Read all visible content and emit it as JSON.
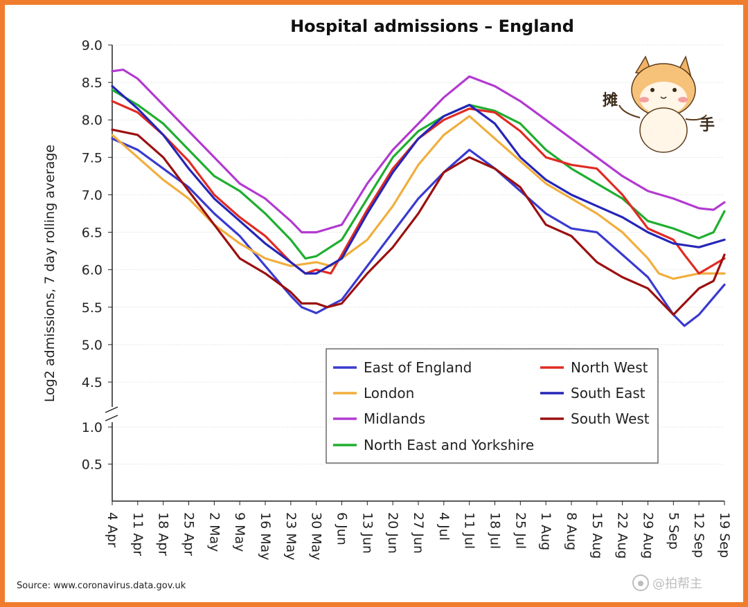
{
  "chart_data": {
    "type": "line",
    "title": "Hospital admissions – England",
    "xlabel": "",
    "ylabel": "Log2 admissions, 7 day rolling average",
    "yticks_upper": [
      "4.5",
      "5.0",
      "5.5",
      "6.0",
      "6.5",
      "7.0",
      "7.5",
      "8.0",
      "8.5",
      "9.0"
    ],
    "yticks_lower": [
      "0.5",
      "1.0"
    ],
    "ylim_upper": [
      4.3,
      9.0
    ],
    "ylim_lower": [
      0.0,
      1.0
    ],
    "y_axis_break": true,
    "x_labels": [
      "4 Apr",
      "11 Apr",
      "18 Apr",
      "25 Apr",
      "2 May",
      "9 May",
      "16 May",
      "23 May",
      "30 May",
      "6 Jun",
      "13 Jun",
      "20 Jun",
      "27 Jun",
      "4 Jul",
      "11 Jul",
      "18 Jul",
      "25 Jul",
      "1 Aug",
      "8 Aug",
      "15 Aug",
      "22 Aug",
      "29 Aug",
      "5 Sep",
      "12 Sep",
      "19 Sep"
    ],
    "x_days": [
      0,
      7,
      14,
      21,
      28,
      35,
      42,
      49,
      56,
      63,
      70,
      77,
      84,
      91,
      98,
      105,
      112,
      119,
      126,
      133,
      140,
      147,
      154,
      161,
      168
    ],
    "grid": "horizontal",
    "legend_position": "bottom-right",
    "series": [
      {
        "name": "East of England",
        "color": "#3a3ad0",
        "x": [
          0,
          7,
          14,
          21,
          28,
          35,
          42,
          49,
          52,
          56,
          59,
          63,
          70,
          77,
          84,
          91,
          98,
          105,
          112,
          119,
          126,
          133,
          140,
          147,
          154,
          157,
          161,
          168
        ],
        "values": [
          7.75,
          7.6,
          7.35,
          7.1,
          6.75,
          6.45,
          6.05,
          5.65,
          5.5,
          5.42,
          5.5,
          5.6,
          6.05,
          6.5,
          6.95,
          7.3,
          7.6,
          7.35,
          7.05,
          6.75,
          6.55,
          6.5,
          6.2,
          5.9,
          5.4,
          5.25,
          5.4,
          5.8
        ]
      },
      {
        "name": "London",
        "color": "#f1ae3c",
        "x": [
          0,
          7,
          14,
          21,
          28,
          35,
          42,
          49,
          56,
          60,
          63,
          70,
          77,
          84,
          91,
          98,
          105,
          112,
          119,
          126,
          133,
          140,
          147,
          150,
          154,
          161,
          168
        ],
        "values": [
          7.8,
          7.5,
          7.2,
          6.95,
          6.6,
          6.35,
          6.15,
          6.05,
          6.1,
          6.05,
          6.15,
          6.4,
          6.85,
          7.4,
          7.8,
          8.05,
          7.75,
          7.45,
          7.15,
          6.95,
          6.75,
          6.5,
          6.15,
          5.95,
          5.88,
          5.95,
          5.95
        ]
      },
      {
        "name": "Midlands",
        "color": "#b23ad0",
        "x": [
          0,
          3,
          7,
          14,
          21,
          28,
          35,
          42,
          49,
          52,
          56,
          63,
          70,
          77,
          84,
          91,
          98,
          105,
          112,
          119,
          126,
          133,
          140,
          147,
          154,
          161,
          165,
          168
        ],
        "values": [
          8.65,
          8.67,
          8.55,
          8.2,
          7.85,
          7.5,
          7.15,
          6.95,
          6.65,
          6.5,
          6.5,
          6.6,
          7.15,
          7.6,
          7.95,
          8.3,
          8.58,
          8.45,
          8.25,
          8.0,
          7.75,
          7.5,
          7.25,
          7.05,
          6.95,
          6.82,
          6.8,
          6.9
        ]
      },
      {
        "name": "North East and Yorkshire",
        "color": "#1fae2f",
        "x": [
          0,
          7,
          14,
          21,
          28,
          35,
          42,
          49,
          53,
          56,
          63,
          70,
          77,
          84,
          91,
          98,
          105,
          112,
          119,
          126,
          133,
          140,
          147,
          154,
          161,
          165,
          168
        ],
        "values": [
          8.4,
          8.2,
          7.95,
          7.6,
          7.25,
          7.05,
          6.75,
          6.4,
          6.15,
          6.18,
          6.4,
          6.95,
          7.5,
          7.85,
          8.05,
          8.2,
          8.12,
          7.95,
          7.6,
          7.35,
          7.15,
          6.95,
          6.65,
          6.55,
          6.42,
          6.5,
          6.78
        ]
      },
      {
        "name": "North West",
        "color": "#e02b22",
        "x": [
          0,
          7,
          14,
          21,
          28,
          35,
          42,
          49,
          53,
          56,
          60,
          63,
          70,
          77,
          84,
          91,
          98,
          105,
          112,
          119,
          126,
          133,
          140,
          147,
          154,
          157,
          161,
          168
        ],
        "values": [
          8.25,
          8.1,
          7.8,
          7.45,
          7.0,
          6.7,
          6.45,
          6.1,
          5.95,
          6.0,
          5.95,
          6.2,
          6.8,
          7.35,
          7.75,
          8.0,
          8.15,
          8.1,
          7.85,
          7.5,
          7.4,
          7.35,
          7.0,
          6.55,
          6.4,
          6.2,
          5.95,
          6.15
        ]
      },
      {
        "name": "South East",
        "color": "#2525b8",
        "x": [
          0,
          7,
          14,
          21,
          28,
          35,
          42,
          49,
          53,
          56,
          63,
          70,
          77,
          84,
          91,
          98,
          105,
          112,
          119,
          126,
          133,
          140,
          147,
          154,
          161,
          168
        ],
        "values": [
          8.45,
          8.15,
          7.8,
          7.35,
          6.95,
          6.65,
          6.35,
          6.1,
          5.95,
          5.95,
          6.15,
          6.75,
          7.3,
          7.75,
          8.05,
          8.2,
          7.95,
          7.5,
          7.2,
          7.0,
          6.85,
          6.7,
          6.5,
          6.35,
          6.3,
          6.4
        ]
      },
      {
        "name": "South West",
        "color": "#9b1010",
        "x": [
          0,
          7,
          14,
          21,
          28,
          35,
          42,
          49,
          52,
          56,
          59,
          63,
          70,
          77,
          84,
          91,
          98,
          105,
          112,
          119,
          126,
          133,
          140,
          147,
          154,
          161,
          165,
          168
        ],
        "values": [
          7.87,
          7.8,
          7.5,
          7.05,
          6.6,
          6.15,
          5.95,
          5.7,
          5.55,
          5.55,
          5.5,
          5.55,
          5.95,
          6.3,
          6.75,
          7.3,
          7.5,
          7.35,
          7.1,
          6.6,
          6.45,
          6.1,
          5.9,
          5.75,
          5.4,
          5.75,
          5.85,
          6.2
        ]
      }
    ]
  },
  "legend_cols": [
    [
      "East of England",
      "London",
      "Midlands",
      "North East and Yorkshire"
    ],
    [
      "North West",
      "South East",
      "South West"
    ]
  ],
  "source": "Source: www.coronavirus.data.gov.uk",
  "sticker": {
    "left_text": "摊",
    "right_text": "手"
  },
  "watermark": "@拍帮主"
}
